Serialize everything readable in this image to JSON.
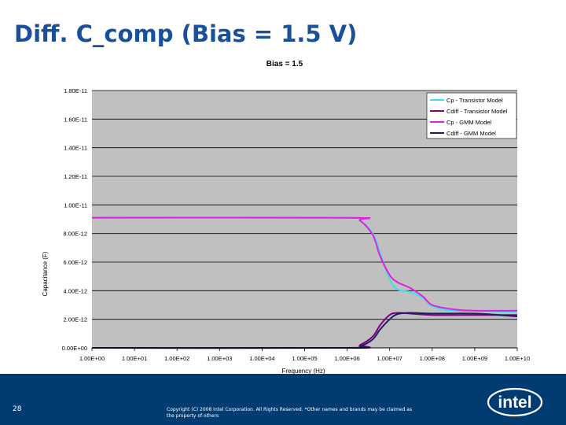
{
  "slide": {
    "title": "Diff. C_comp (Bias = 1.5 V)",
    "page_number": "28",
    "copyright": "Copyright (C) 2008 Intel Corporation. All Rights Reserved. *Other names and brands may be claimed as the property of others",
    "logo_text": "intel",
    "colors": {
      "title": "#1a4f9c",
      "footer": "#003c71",
      "plot_bg": "#c0c0c0"
    }
  },
  "chart_data": {
    "type": "line",
    "title": "Bias = 1.5",
    "xlabel": "Frequency (Hz)",
    "ylabel": "Capacitance (F)",
    "x_scale": "log",
    "xlim": [
      1,
      10000000000
    ],
    "ylim": [
      0,
      1.8e-11
    ],
    "x_ticks": [
      1,
      10,
      100,
      1000,
      10000,
      100000,
      1000000,
      10000000,
      100000000,
      1000000000,
      10000000000
    ],
    "x_tick_labels": [
      "1.00E+00",
      "1.00E+01",
      "1.00E+02",
      "1.00E+03",
      "1.00E+04",
      "1.00E+05",
      "1.00E+06",
      "1.00E+07",
      "1.00E+08",
      "1.00E+09",
      "1.00E+10"
    ],
    "y_ticks": [
      0,
      2e-12,
      4e-12,
      6e-12,
      8e-12,
      1e-11,
      1.2e-11,
      1.4e-11,
      1.6e-11,
      1.8e-11
    ],
    "y_tick_labels": [
      "0.00E+00",
      "2.00E-12",
      "4.00E-12",
      "6.00E-12",
      "8.00E-12",
      "1.00E-11",
      "1.20E-11",
      "1.40E-11",
      "1.60E-11",
      "1.80E-11"
    ],
    "grid": true,
    "legend_position": "top-right",
    "series": [
      {
        "name": "Cp - Transistor Model",
        "color": "#40e0e8",
        "x": [
          1,
          1000000,
          2000000,
          4000000,
          6000000,
          10000000,
          15000000,
          30000000,
          60000000,
          100000000,
          300000000,
          1000000000,
          10000000000
        ],
        "y": [
          9.1e-12,
          9.1e-12,
          8.9e-12,
          8e-12,
          6.6e-12,
          4.8e-12,
          4.1e-12,
          3.9e-12,
          3.5e-12,
          2.9e-12,
          2.6e-12,
          2.6e-12,
          2.5e-12
        ]
      },
      {
        "name": "Cdiff - Transistor Model",
        "color": "#800080",
        "x": [
          1,
          1000000,
          2000000,
          4000000,
          6000000,
          10000000,
          15000000,
          30000000,
          100000000,
          1000000000,
          10000000000
        ],
        "y": [
          0,
          0,
          2e-13,
          8e-13,
          1.6e-12,
          2.3e-12,
          2.45e-12,
          2.4e-12,
          2.3e-12,
          2.3e-12,
          2.3e-12
        ]
      },
      {
        "name": "Cp - GMM Model",
        "color": "#e020e0",
        "x": [
          1,
          1000000,
          2000000,
          4000000,
          6000000,
          10000000,
          15000000,
          30000000,
          60000000,
          100000000,
          300000000,
          1000000000,
          10000000000
        ],
        "y": [
          9.1e-12,
          9.1e-12,
          8.9e-12,
          7.9e-12,
          6.4e-12,
          5.1e-12,
          4.6e-12,
          4.2e-12,
          3.6e-12,
          3e-12,
          2.7e-12,
          2.6e-12,
          2.6e-12
        ]
      },
      {
        "name": "Cdiff - GMM Model",
        "color": "#1c1c60",
        "x": [
          1,
          1000000,
          2000000,
          4000000,
          6000000,
          10000000,
          15000000,
          30000000,
          100000000,
          1000000000,
          10000000000
        ],
        "y": [
          0,
          0,
          1e-13,
          6e-13,
          1.3e-12,
          2e-12,
          2.35e-12,
          2.45e-12,
          2.4e-12,
          2.4e-12,
          2.2e-12
        ]
      }
    ]
  }
}
